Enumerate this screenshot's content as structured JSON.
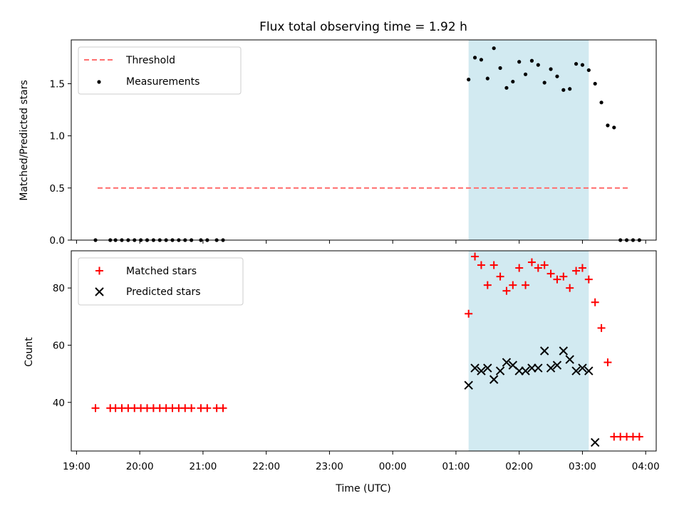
{
  "chart_data": [
    {
      "type": "scatter",
      "title": "Flux total observing time = 1.92 h",
      "ylabel": "Matched/Predicted stars",
      "xlabel": "",
      "xlim": [
        "18:55",
        "04:10"
      ],
      "ylim": [
        0,
        1.92
      ],
      "yticks": [
        0.0,
        0.5,
        1.0,
        1.5
      ],
      "yticklabels": [
        "0.0",
        "0.5",
        "1.0",
        "1.5"
      ],
      "legend_position": "top-left",
      "grid": false,
      "shaded_region": {
        "start": "01:12",
        "end": "03:06",
        "color": "#add8e6"
      },
      "threshold": {
        "name": "Threshold",
        "value": 0.5,
        "x_start": "19:20",
        "x_end": "03:45",
        "color": "#ff6f6f"
      },
      "series": [
        {
          "name": "Measurements",
          "color": "#000000",
          "marker": "dot",
          "x": [
            "19:18",
            "19:32",
            "19:37",
            "19:43",
            "19:49",
            "19:55",
            "20:01",
            "20:07",
            "20:13",
            "20:19",
            "20:25",
            "20:31",
            "20:37",
            "20:43",
            "20:49",
            "20:58",
            "21:04",
            "21:13",
            "21:19",
            "01:12",
            "01:18",
            "01:24",
            "01:30",
            "01:36",
            "01:42",
            "01:48",
            "01:54",
            "02:00",
            "02:06",
            "02:12",
            "02:18",
            "02:24",
            "02:30",
            "02:36",
            "02:42",
            "02:48",
            "02:54",
            "03:00",
            "03:06",
            "03:12",
            "03:18",
            "03:24",
            "03:30",
            "03:36",
            "03:42",
            "03:48",
            "03:54"
          ],
          "y": [
            0,
            0,
            0,
            0,
            0,
            0,
            0,
            0,
            0,
            0,
            0,
            0,
            0,
            0,
            0,
            0,
            0,
            0,
            0,
            1.54,
            1.75,
            1.73,
            1.55,
            1.84,
            1.65,
            1.46,
            1.52,
            1.71,
            1.59,
            1.72,
            1.68,
            1.51,
            1.64,
            1.57,
            1.44,
            1.45,
            1.69,
            1.68,
            1.63,
            1.5,
            1.32,
            1.1,
            1.08,
            0,
            0,
            0,
            0
          ]
        }
      ]
    },
    {
      "type": "scatter",
      "title": "",
      "ylabel": "Count",
      "xlabel": "Time (UTC)",
      "xlim": [
        "18:55",
        "04:10"
      ],
      "ylim": [
        23,
        93
      ],
      "yticks": [
        40,
        60,
        80
      ],
      "yticklabels": [
        "40",
        "60",
        "80"
      ],
      "xticklabels": [
        "19:00",
        "20:00",
        "21:00",
        "22:00",
        "23:00",
        "00:00",
        "01:00",
        "02:00",
        "03:00",
        "04:00"
      ],
      "legend_position": "top-left",
      "grid": false,
      "shaded_region": {
        "start": "01:12",
        "end": "03:06",
        "color": "#add8e6"
      },
      "series": [
        {
          "name": "Matched stars",
          "color": "#ff0000",
          "marker": "plus",
          "x": [
            "19:18",
            "19:32",
            "19:37",
            "19:43",
            "19:49",
            "19:55",
            "20:01",
            "20:07",
            "20:13",
            "20:19",
            "20:25",
            "20:31",
            "20:37",
            "20:43",
            "20:49",
            "20:58",
            "21:04",
            "21:13",
            "21:19",
            "01:12",
            "01:18",
            "01:24",
            "01:30",
            "01:36",
            "01:42",
            "01:48",
            "01:54",
            "02:00",
            "02:06",
            "02:12",
            "02:18",
            "02:24",
            "02:30",
            "02:36",
            "02:42",
            "02:48",
            "02:54",
            "03:00",
            "03:06",
            "03:12",
            "03:18",
            "03:24",
            "03:30",
            "03:36",
            "03:42",
            "03:48",
            "03:54"
          ],
          "y": [
            38,
            38,
            38,
            38,
            38,
            38,
            38,
            38,
            38,
            38,
            38,
            38,
            38,
            38,
            38,
            38,
            38,
            38,
            38,
            71,
            91,
            88,
            81,
            88,
            84,
            79,
            81,
            87,
            81,
            89,
            87,
            88,
            85,
            83,
            84,
            80,
            86,
            87,
            83,
            75,
            66,
            54,
            28,
            28,
            28,
            28,
            28
          ]
        },
        {
          "name": "Predicted stars",
          "color": "#000000",
          "marker": "x",
          "x": [
            "01:12",
            "01:18",
            "01:24",
            "01:30",
            "01:36",
            "01:42",
            "01:48",
            "01:54",
            "02:00",
            "02:06",
            "02:12",
            "02:18",
            "02:24",
            "02:30",
            "02:36",
            "02:42",
            "02:48",
            "02:54",
            "03:00",
            "03:06",
            "03:12"
          ],
          "y": [
            46,
            52,
            51,
            52,
            48,
            51,
            54,
            53,
            51,
            51,
            52,
            52,
            58,
            52,
            53,
            58,
            55,
            51,
            52,
            51,
            26
          ]
        }
      ]
    }
  ]
}
